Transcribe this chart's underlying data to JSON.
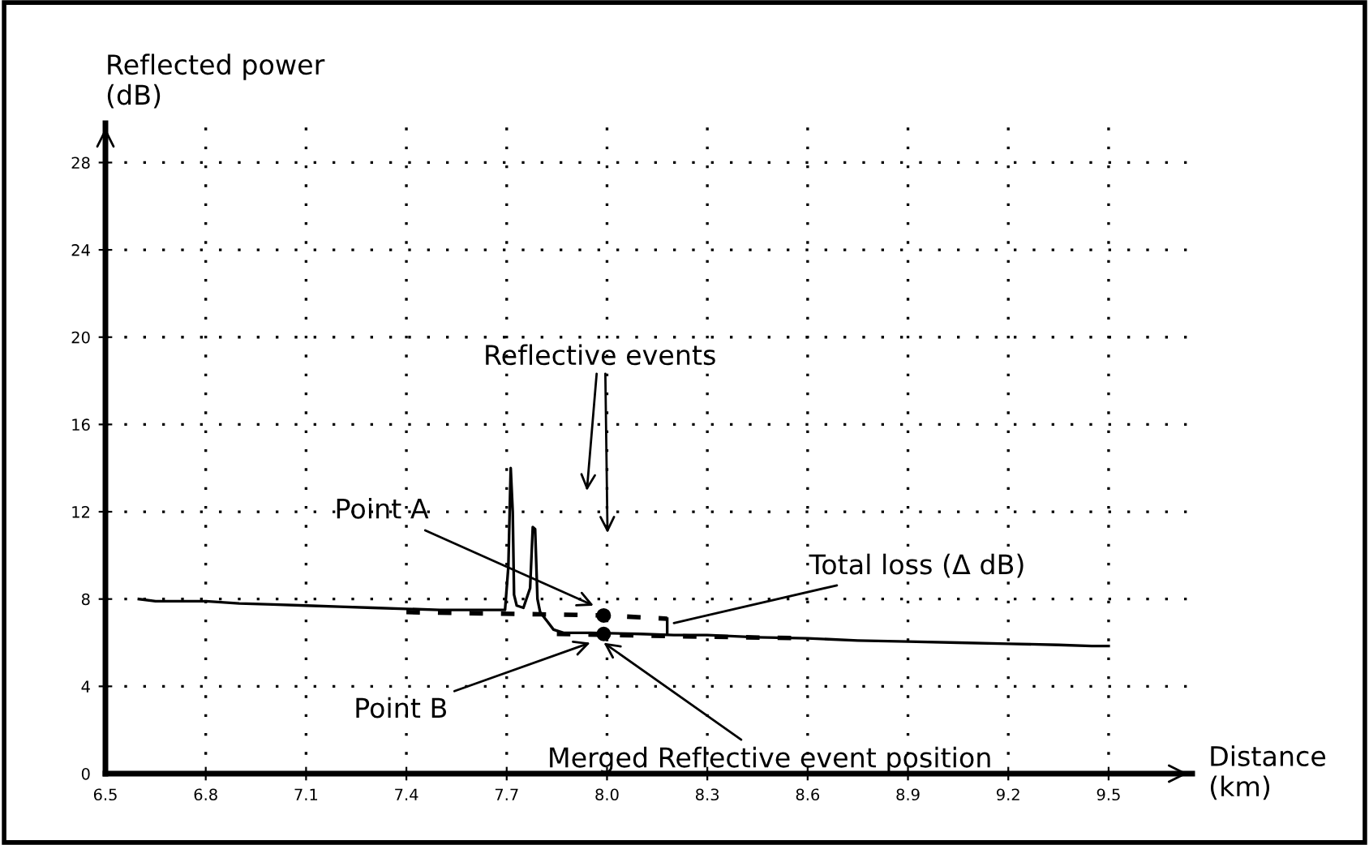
{
  "chart_data": {
    "type": "line",
    "xlabel": "Distance\n(km)",
    "ylabel": "Reflected power\n(dB)",
    "xlim": [
      6.5,
      9.75
    ],
    "ylim": [
      0,
      29.8
    ],
    "xticks": [
      6.5,
      6.8,
      7.1,
      7.4,
      7.7,
      {
        "value": 8.0,
        "label": "8.0"
      },
      8.3,
      8.6,
      8.9,
      9.2,
      9.5
    ],
    "yticks": [
      0,
      4,
      8,
      12,
      16,
      20,
      24,
      28
    ],
    "grid": true,
    "series": [
      {
        "color": "#000000",
        "line_style": "solid",
        "marker": "none",
        "x": [
          6.6,
          6.65,
          6.8,
          6.9,
          7.0,
          7.1,
          7.2,
          7.3,
          7.4,
          7.5,
          7.6,
          7.695,
          7.705,
          7.712,
          7.718,
          7.722,
          7.73,
          7.75,
          7.77,
          7.778,
          7.785,
          7.792,
          7.8,
          7.82,
          7.84,
          7.87,
          7.95,
          8.1,
          8.2,
          8.3,
          8.45,
          8.6,
          8.75,
          8.9,
          9.05,
          9.2,
          9.35,
          9.45,
          9.5
        ],
        "values": [
          8.0,
          7.9,
          7.9,
          7.8,
          7.75,
          7.7,
          7.65,
          7.6,
          7.55,
          7.5,
          7.5,
          7.5,
          9.5,
          14.0,
          12.0,
          8.2,
          7.7,
          7.6,
          8.5,
          11.3,
          11.2,
          8.0,
          7.4,
          7.0,
          6.6,
          6.45,
          6.45,
          6.4,
          6.35,
          6.35,
          6.25,
          6.2,
          6.1,
          6.05,
          6.0,
          5.95,
          5.9,
          5.85,
          5.85
        ]
      },
      {
        "color": "#000000",
        "line_style": "dashed",
        "marker": "none",
        "x": [
          7.4,
          7.8,
          7.99,
          8.18
        ],
        "values": [
          7.4,
          7.3,
          7.25,
          7.1
        ]
      },
      {
        "color": "#000000",
        "line_style": "dashed",
        "marker": "none",
        "x": [
          7.85,
          8.2,
          8.6
        ],
        "values": [
          6.4,
          6.3,
          6.2
        ]
      },
      {
        "color": "#000000",
        "line_style": "solid",
        "marker": "none",
        "x": [
          8.18,
          8.18
        ],
        "values": [
          7.1,
          6.4
        ]
      },
      {
        "type": "scatter",
        "color": "#000000",
        "marker": "circle",
        "x": [
          7.99,
          7.99
        ],
        "values": [
          7.25,
          6.4
        ]
      }
    ],
    "annotations": [
      "Reflective events",
      {
        "text": "Point A",
        "x": 7.96,
        "y": 7.7
      },
      {
        "text": "Total loss (Δ dB)",
        "x": 8.2,
        "y": 6.9
      },
      {
        "text": "Point B",
        "x": 7.95,
        "y": 6.0
      },
      {
        "text": "Merged Reflective event position",
        "x": 7.99,
        "y": 6.0
      }
    ]
  }
}
